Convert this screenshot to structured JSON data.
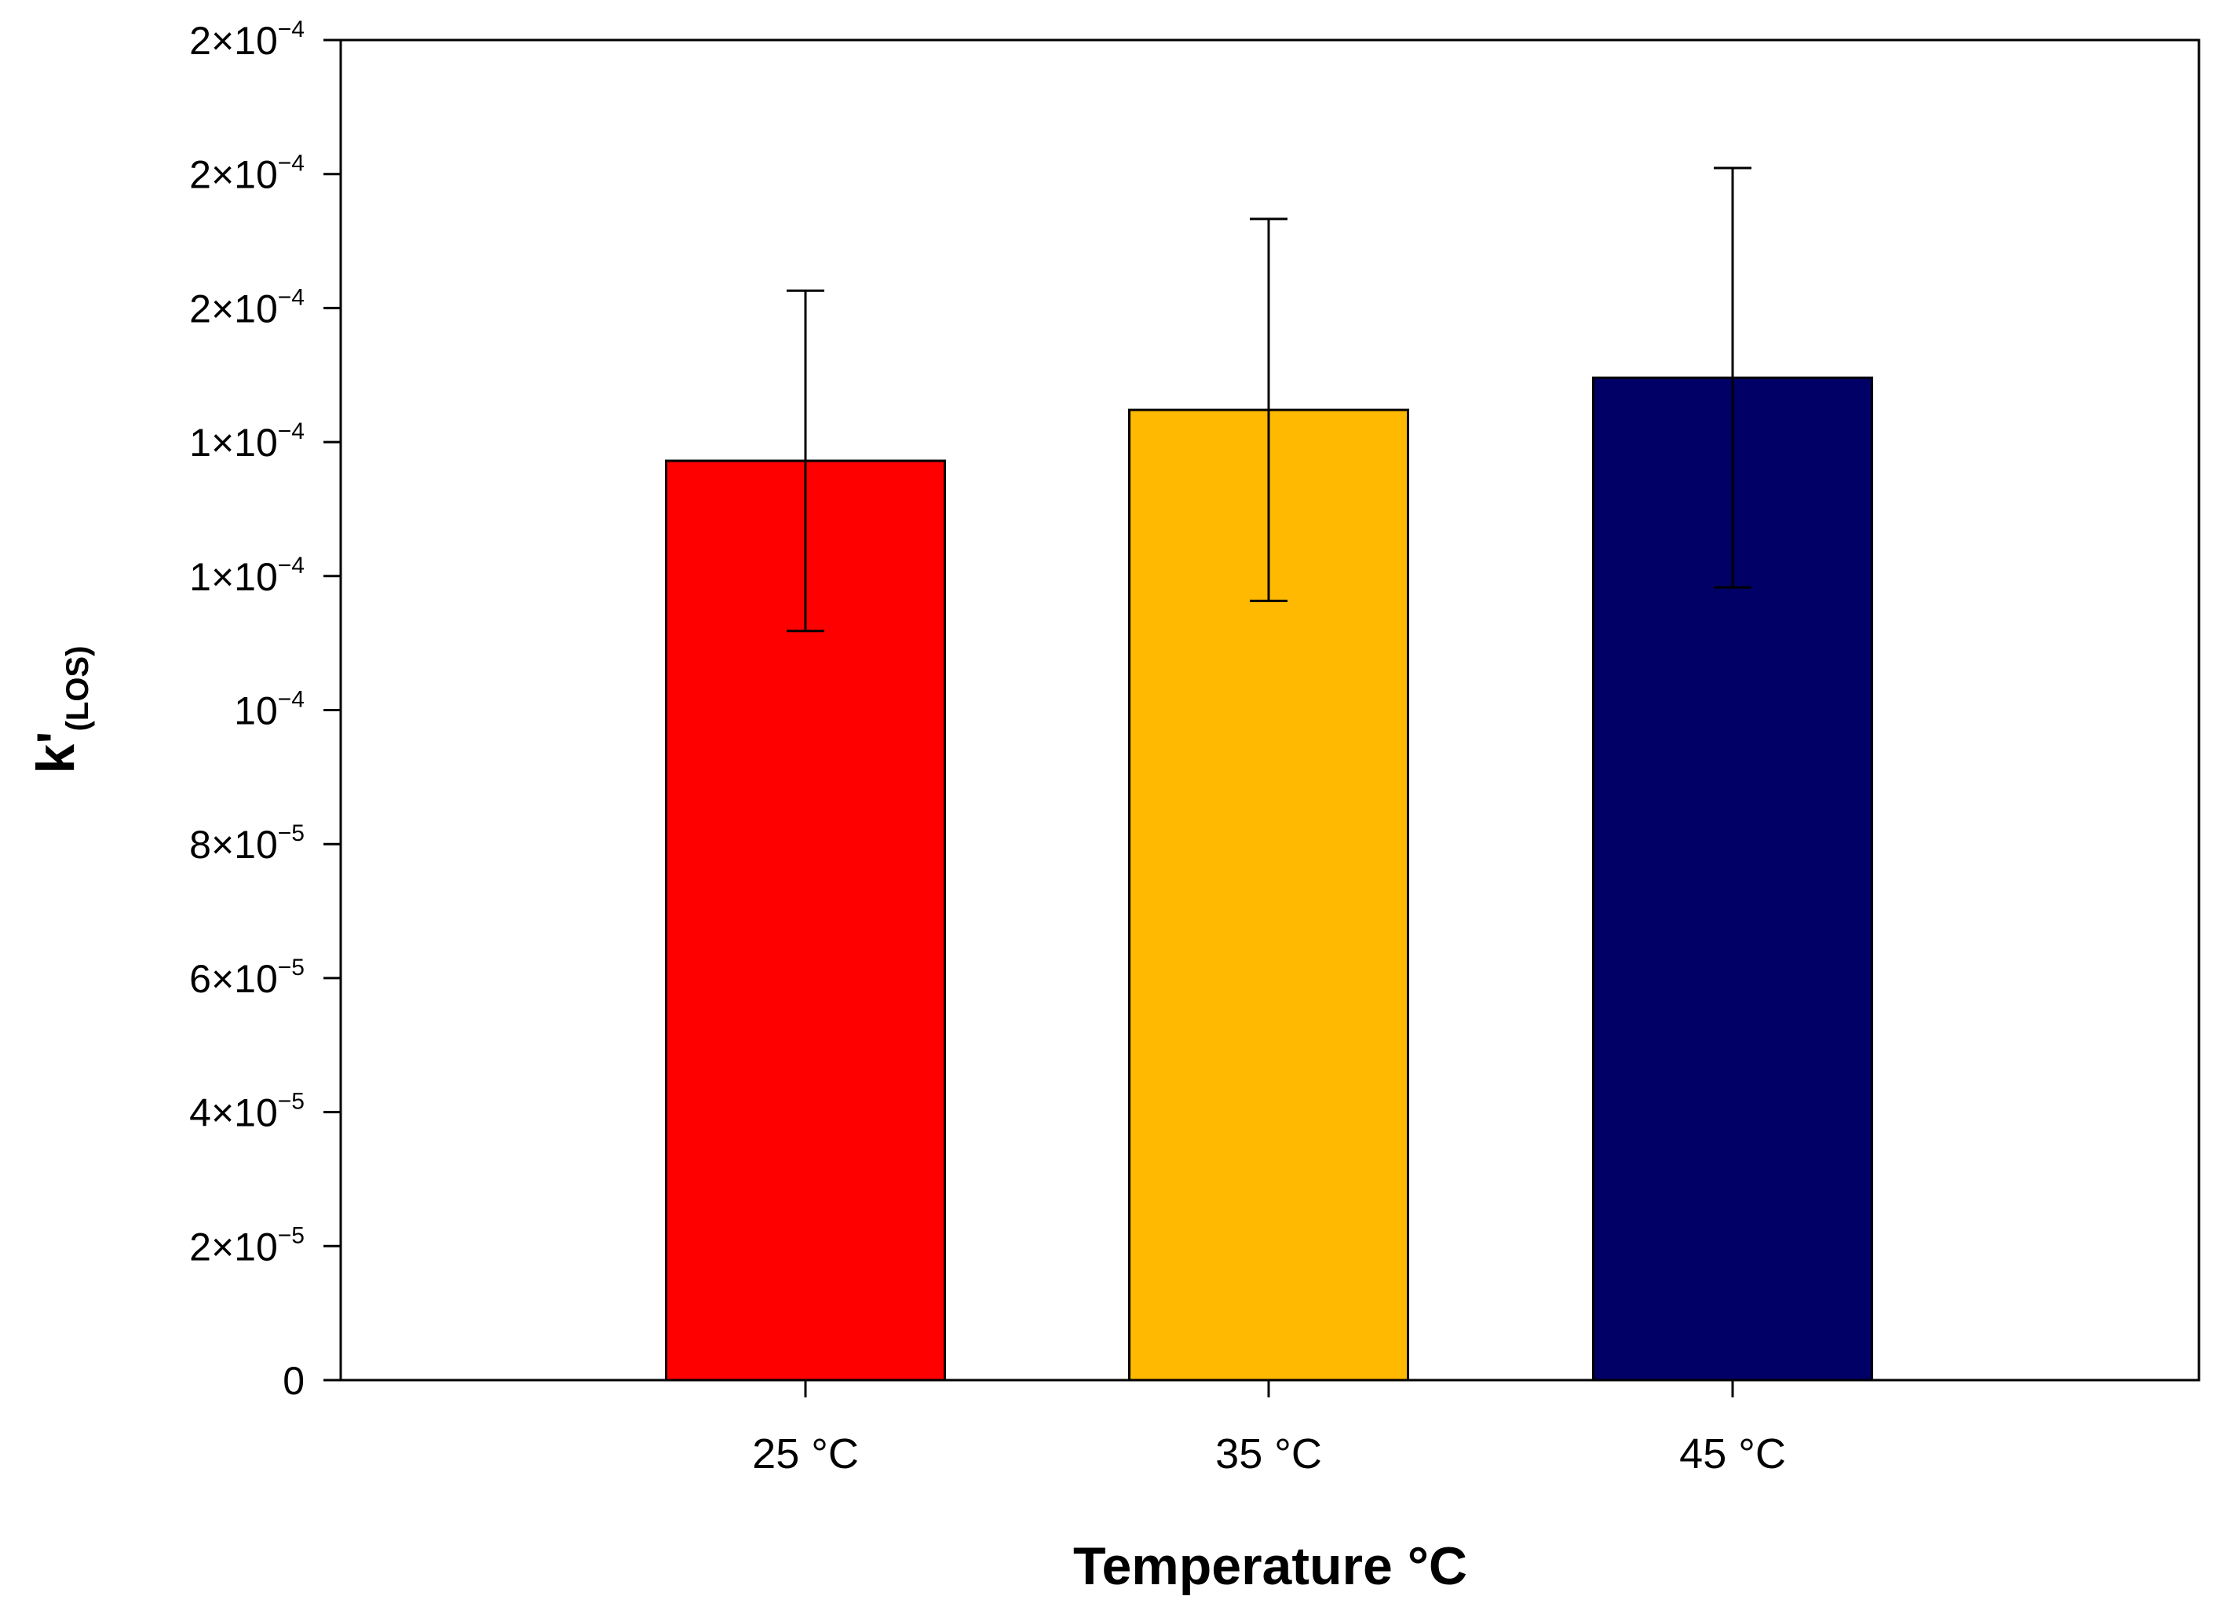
{
  "chart_data": {
    "type": "bar",
    "title": "",
    "xlabel": "Temperature °C",
    "ylabel": {
      "main": "k'",
      "subscript": "(LOS)"
    },
    "categories": [
      "25 °C",
      "35 °C",
      "45 °C"
    ],
    "values": [
      0.0001372,
      0.0001448,
      0.0001496
    ],
    "errors": [
      2.54e-05,
      2.85e-05,
      3.13e-05
    ],
    "colors": [
      "#ff0000",
      "#ffb900",
      "#000066"
    ],
    "ylim": [
      0,
      0.0002
    ],
    "yticks": [
      {
        "value": 0,
        "mantissa": "0",
        "exponent": ""
      },
      {
        "value": 2e-05,
        "mantissa": "2×10",
        "exponent": "−5"
      },
      {
        "value": 4e-05,
        "mantissa": "4×10",
        "exponent": "−5"
      },
      {
        "value": 6e-05,
        "mantissa": "6×10",
        "exponent": "−5"
      },
      {
        "value": 8e-05,
        "mantissa": "8×10",
        "exponent": "−5"
      },
      {
        "value": 0.0001,
        "mantissa": "10",
        "exponent": "−4"
      },
      {
        "value": 0.00012,
        "mantissa": "1×10",
        "exponent": "−4"
      },
      {
        "value": 0.00014,
        "mantissa": "1×10",
        "exponent": "−4"
      },
      {
        "value": 0.00016,
        "mantissa": "2×10",
        "exponent": "−4"
      },
      {
        "value": 0.00018,
        "mantissa": "2×10",
        "exponent": "−4"
      },
      {
        "value": 0.0002,
        "mantissa": "2×10",
        "exponent": "−4"
      }
    ],
    "grid": false,
    "legend": "none"
  }
}
